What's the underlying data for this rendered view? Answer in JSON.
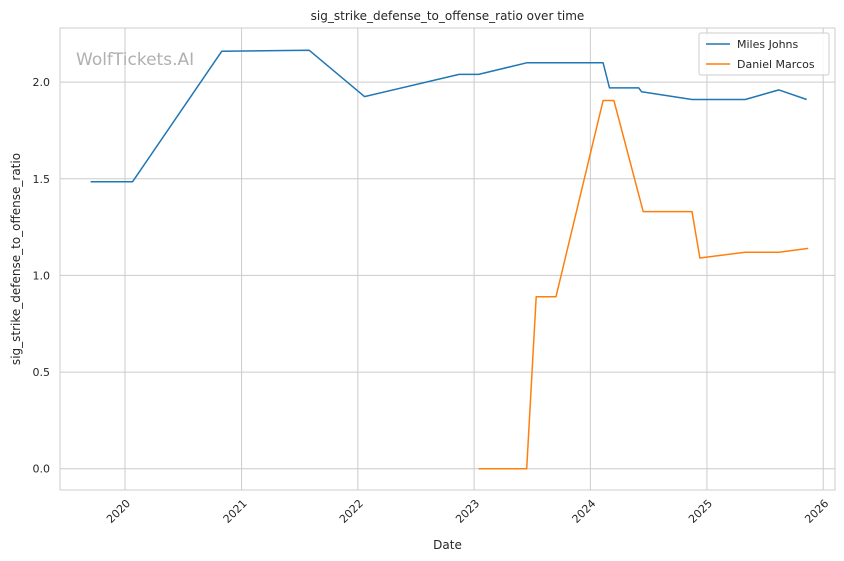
{
  "chart_data": {
    "type": "line",
    "title": "sig_strike_defense_to_offense_ratio over time",
    "xlabel": "Date",
    "ylabel": "sig_strike_defense_to_offense_ratio",
    "watermark": "WolfTickets.AI",
    "x_ticks": [
      "2020",
      "2021",
      "2022",
      "2023",
      "2024",
      "2025",
      "2026"
    ],
    "y_ticks": [
      "0.0",
      "0.5",
      "1.0",
      "1.5",
      "2.0"
    ],
    "xlim": [
      "2019-06-11",
      "2026-02-07"
    ],
    "ylim": [
      -0.11,
      2.28
    ],
    "grid": true,
    "legend_position": "top-right",
    "series": [
      {
        "name": "Miles Johns",
        "color": "#1f77b4",
        "points": [
          [
            "2019-09-15",
            1.485
          ],
          [
            "2020-01-25",
            1.485
          ],
          [
            "2020-10-31",
            2.16
          ],
          [
            "2021-08-01",
            2.165
          ],
          [
            "2022-01-22",
            1.925
          ],
          [
            "2022-11-15",
            2.04
          ],
          [
            "2023-01-15",
            2.04
          ],
          [
            "2023-06-15",
            2.1
          ],
          [
            "2024-02-10",
            2.1
          ],
          [
            "2024-03-01",
            1.97
          ],
          [
            "2024-06-01",
            1.97
          ],
          [
            "2024-06-10",
            1.95
          ],
          [
            "2024-11-15",
            1.91
          ],
          [
            "2025-05-01",
            1.91
          ],
          [
            "2025-08-15",
            1.96
          ],
          [
            "2025-11-10",
            1.91
          ]
        ]
      },
      {
        "name": "Daniel Marcos",
        "color": "#ff7f0e",
        "points": [
          [
            "2023-01-15",
            0.0
          ],
          [
            "2023-06-15",
            0.0
          ],
          [
            "2023-07-15",
            0.89
          ],
          [
            "2023-09-15",
            0.89
          ],
          [
            "2024-02-10",
            1.905
          ],
          [
            "2024-03-15",
            1.905
          ],
          [
            "2024-06-15",
            1.33
          ],
          [
            "2024-11-15",
            1.33
          ],
          [
            "2024-12-10",
            1.09
          ],
          [
            "2025-05-01",
            1.12
          ],
          [
            "2025-08-15",
            1.12
          ],
          [
            "2025-11-15",
            1.14
          ]
        ]
      }
    ]
  }
}
